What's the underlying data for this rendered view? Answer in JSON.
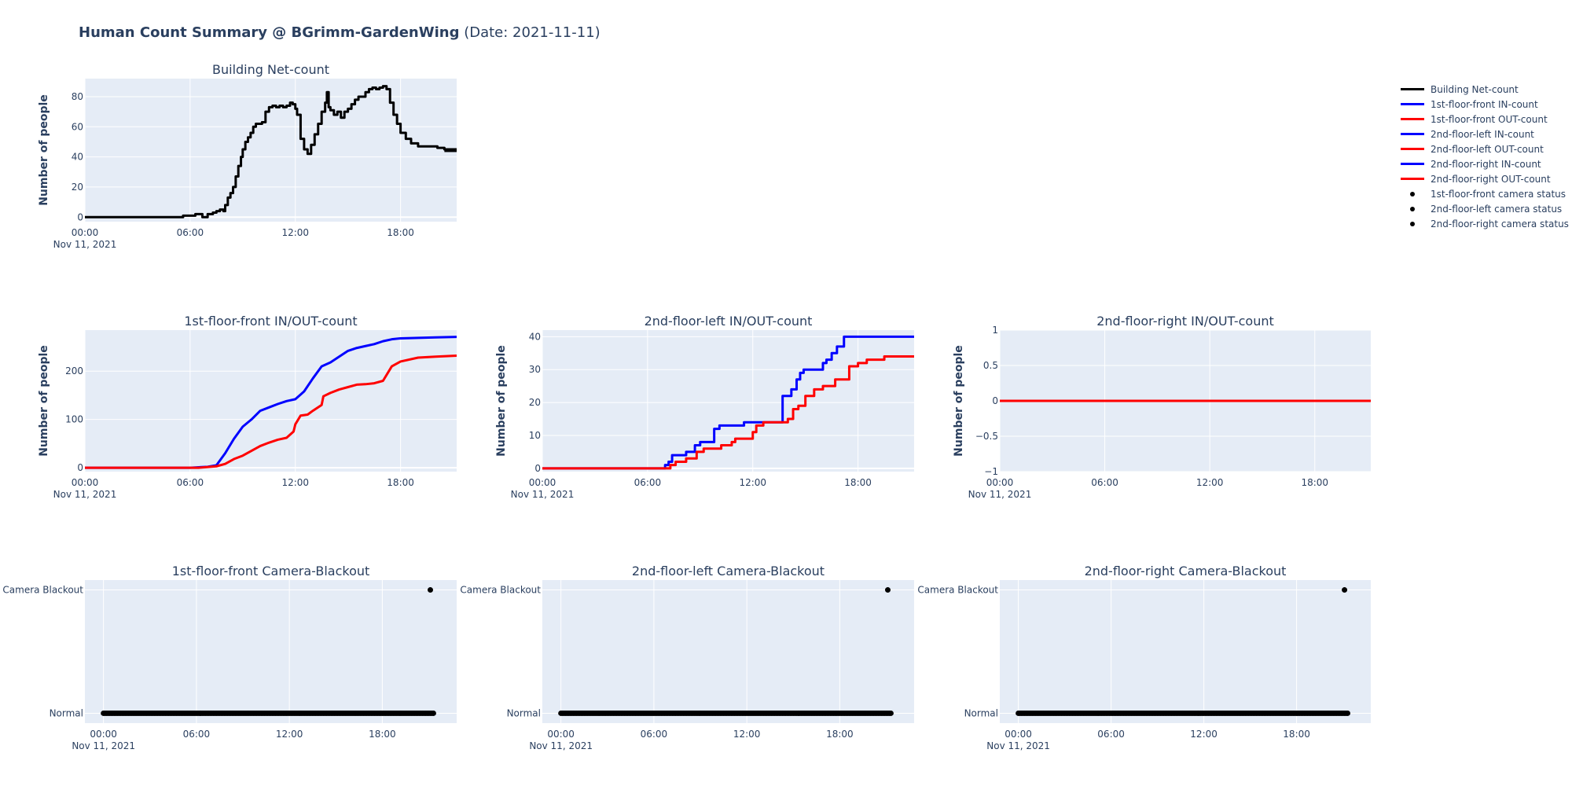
{
  "page": {
    "title_bold": "Human Count Summary @ BGrimm-GardenWing",
    "title_suffix": " (Date: 2021-11-11)"
  },
  "legend": [
    {
      "label": "Building Net-count",
      "kind": "line",
      "color": "#000000"
    },
    {
      "label": "1st-floor-front IN-count",
      "kind": "line",
      "color": "#0000ff"
    },
    {
      "label": "1st-floor-front OUT-count",
      "kind": "line",
      "color": "#ff0000"
    },
    {
      "label": "2nd-floor-left IN-count",
      "kind": "line",
      "color": "#0000ff"
    },
    {
      "label": "2nd-floor-left OUT-count",
      "kind": "line",
      "color": "#ff0000"
    },
    {
      "label": "2nd-floor-right IN-count",
      "kind": "line",
      "color": "#0000ff"
    },
    {
      "label": "2nd-floor-right OUT-count",
      "kind": "line",
      "color": "#ff0000"
    },
    {
      "label": "1st-floor-front camera status",
      "kind": "marker",
      "color": "#000000"
    },
    {
      "label": "2nd-floor-left camera status",
      "kind": "marker",
      "color": "#000000"
    },
    {
      "label": "2nd-floor-right camera status",
      "kind": "marker",
      "color": "#000000"
    }
  ],
  "chart_data": [
    {
      "id": "building-net",
      "type": "line",
      "title": "Building Net-count",
      "xlabel": "",
      "ylabel": "Number of people",
      "x_unit": "hours since 00:00 Nov 11, 2021",
      "xlim": [
        0,
        21.2
      ],
      "ylim": [
        -3,
        92
      ],
      "xticks": [
        0,
        6,
        12,
        18
      ],
      "xtick_labels": [
        "00:00",
        "06:00",
        "12:00",
        "18:00"
      ],
      "x_date_label": "Nov 11, 2021",
      "yticks": [
        0,
        20,
        40,
        60,
        80
      ],
      "ytick_labels": [
        "0",
        "20",
        "40",
        "60",
        "80"
      ],
      "grid": true,
      "series": [
        {
          "name": "Building Net-count",
          "color": "#000000",
          "shape": "hv",
          "x": [
            0,
            5.5,
            5.6,
            6.3,
            6.4,
            6.7,
            6.8,
            7.0,
            7.3,
            7.5,
            7.7,
            7.9,
            8.0,
            8.15,
            8.3,
            8.45,
            8.6,
            8.75,
            8.9,
            9.0,
            9.15,
            9.3,
            9.45,
            9.6,
            9.75,
            9.9,
            10.1,
            10.3,
            10.5,
            10.7,
            10.9,
            11.1,
            11.3,
            11.5,
            11.7,
            11.85,
            12.0,
            12.1,
            12.3,
            12.5,
            12.7,
            12.9,
            13.1,
            13.3,
            13.5,
            13.7,
            13.8,
            13.9,
            14.0,
            14.2,
            14.4,
            14.6,
            14.8,
            15.0,
            15.2,
            15.4,
            15.6,
            15.8,
            16.0,
            16.2,
            16.4,
            16.6,
            16.8,
            17.0,
            17.2,
            17.4,
            17.6,
            17.8,
            18.0,
            18.3,
            18.6,
            19.0,
            19.3,
            19.7,
            20.1,
            20.5,
            21.2
          ],
          "y": [
            0,
            0,
            1,
            2,
            2,
            0,
            0,
            2,
            3,
            4,
            5,
            4,
            8,
            13,
            16,
            20,
            27,
            34,
            40,
            45,
            50,
            53,
            56,
            60,
            62,
            62,
            63,
            70,
            73,
            74,
            73,
            74,
            73,
            74,
            76,
            75,
            72,
            68,
            52,
            45,
            42,
            48,
            55,
            62,
            70,
            76,
            83,
            73,
            71,
            68,
            70,
            66,
            70,
            72,
            75,
            78,
            80,
            80,
            83,
            85,
            86,
            85,
            86,
            87,
            85,
            76,
            68,
            62,
            56,
            52,
            49,
            47,
            47,
            47,
            46,
            45,
            44
          ]
        },
        {
          "name": "Building Net-count (tail)",
          "color": "#000000",
          "shape": "hv",
          "x": [
            20.5,
            21.2
          ],
          "y": [
            44,
            44
          ]
        }
      ]
    },
    {
      "id": "ff-front",
      "type": "line",
      "title": "1st-floor-front IN/OUT-count",
      "xlabel": "",
      "ylabel": "Number of people",
      "xlim": [
        0,
        21.2
      ],
      "ylim": [
        -8,
        285
      ],
      "xticks": [
        0,
        6,
        12,
        18
      ],
      "xtick_labels": [
        "00:00",
        "06:00",
        "12:00",
        "18:00"
      ],
      "x_date_label": "Nov 11, 2021",
      "yticks": [
        0,
        100,
        200
      ],
      "ytick_labels": [
        "0",
        "100",
        "200"
      ],
      "grid": true,
      "series": [
        {
          "name": "1st-floor-front IN-count",
          "color": "#0000ff",
          "x": [
            0,
            6.0,
            7.0,
            7.5,
            8.0,
            8.5,
            9.0,
            9.5,
            10.0,
            10.5,
            11.0,
            11.5,
            12.0,
            12.5,
            13.0,
            13.5,
            14.0,
            14.5,
            15.0,
            15.5,
            16.0,
            16.5,
            17.0,
            17.5,
            18.0,
            19.0,
            20.0,
            21.2
          ],
          "y": [
            0,
            0,
            2,
            5,
            30,
            60,
            85,
            100,
            118,
            125,
            132,
            138,
            142,
            158,
            185,
            210,
            218,
            230,
            242,
            248,
            252,
            256,
            262,
            266,
            268,
            269,
            270,
            271
          ]
        },
        {
          "name": "1st-floor-front OUT-count",
          "color": "#ff0000",
          "x": [
            0,
            6.5,
            7.5,
            8.0,
            8.5,
            9.0,
            9.5,
            10.0,
            10.5,
            11.0,
            11.5,
            11.9,
            12.0,
            12.3,
            12.7,
            13.0,
            13.5,
            13.6,
            14.0,
            14.5,
            15.0,
            15.5,
            16.0,
            16.5,
            17.0,
            17.5,
            18.0,
            19.0,
            20.0,
            21.2
          ],
          "y": [
            0,
            0,
            3,
            8,
            18,
            25,
            35,
            45,
            52,
            58,
            62,
            75,
            90,
            108,
            110,
            118,
            130,
            148,
            155,
            162,
            167,
            172,
            173,
            175,
            180,
            210,
            220,
            228,
            230,
            232
          ]
        }
      ]
    },
    {
      "id": "sf-left",
      "type": "line",
      "title": "2nd-floor-left IN/OUT-count",
      "xlabel": "",
      "ylabel": "Number of people",
      "xlim": [
        0,
        21.2
      ],
      "ylim": [
        -1,
        42
      ],
      "xticks": [
        0,
        6,
        12,
        18
      ],
      "xtick_labels": [
        "00:00",
        "06:00",
        "12:00",
        "18:00"
      ],
      "x_date_label": "Nov 11, 2021",
      "yticks": [
        0,
        10,
        20,
        30,
        40
      ],
      "ytick_labels": [
        "0",
        "10",
        "20",
        "30",
        "40"
      ],
      "grid": true,
      "series": [
        {
          "name": "2nd-floor-left IN-count",
          "color": "#0000ff",
          "shape": "hv",
          "x": [
            0,
            6.9,
            7.0,
            7.2,
            7.4,
            8.2,
            8.7,
            9.0,
            9.5,
            9.8,
            10.1,
            11.0,
            11.5,
            12.0,
            13.6,
            13.7,
            14.2,
            14.5,
            14.7,
            14.9,
            15.2,
            16.0,
            16.2,
            16.5,
            16.8,
            17.2,
            17.4,
            21.2
          ],
          "y": [
            0,
            0,
            1,
            2,
            4,
            5,
            7,
            8,
            8,
            12,
            13,
            13,
            14,
            14,
            14,
            22,
            24,
            27,
            29,
            30,
            30,
            32,
            33,
            35,
            37,
            40,
            40,
            40
          ]
        },
        {
          "name": "2nd-floor-left OUT-count",
          "color": "#ff0000",
          "shape": "hv",
          "x": [
            0,
            7.0,
            7.3,
            7.6,
            8.2,
            8.8,
            9.2,
            10.2,
            10.8,
            11.0,
            11.2,
            11.5,
            12.0,
            12.2,
            12.4,
            12.6,
            13.5,
            14.0,
            14.3,
            14.6,
            15.0,
            15.5,
            16.0,
            16.7,
            17.0,
            17.5,
            18.0,
            18.5,
            19.0,
            19.5,
            21.2
          ],
          "y": [
            0,
            0,
            1,
            2,
            3,
            5,
            6,
            7,
            8,
            9,
            9,
            9,
            11,
            13,
            13,
            14,
            14,
            15,
            18,
            19,
            22,
            24,
            25,
            27,
            27,
            31,
            32,
            33,
            33,
            34,
            34
          ]
        }
      ]
    },
    {
      "id": "sf-right",
      "type": "line",
      "title": "2nd-floor-right IN/OUT-count",
      "xlabel": "",
      "ylabel": "Number of people",
      "xlim": [
        0,
        21.2
      ],
      "ylim": [
        -1,
        1
      ],
      "xticks": [
        0,
        6,
        12,
        18
      ],
      "xtick_labels": [
        "00:00",
        "06:00",
        "12:00",
        "18:00"
      ],
      "x_date_label": "Nov 11, 2021",
      "yticks": [
        -1,
        -0.5,
        0,
        0.5,
        1
      ],
      "ytick_labels": [
        "−1",
        "−0.5",
        "0",
        "0.5",
        "1"
      ],
      "grid": true,
      "series": [
        {
          "name": "2nd-floor-right IN-count",
          "color": "#0000ff",
          "x": [
            0,
            21.2
          ],
          "y": [
            0,
            0
          ]
        },
        {
          "name": "2nd-floor-right OUT-count",
          "color": "#ff0000",
          "x": [
            0,
            21.2
          ],
          "y": [
            0,
            0
          ]
        }
      ]
    },
    {
      "id": "ff-front-cam",
      "type": "scatter",
      "title": "1st-floor-front Camera-Blackout",
      "xlabel": "",
      "ylabel": "",
      "xlim": [
        -1.2,
        22.8
      ],
      "ylim": [
        -0.08,
        1.08
      ],
      "xticks": [
        0,
        6,
        12,
        18
      ],
      "xtick_labels": [
        "00:00",
        "06:00",
        "12:00",
        "18:00"
      ],
      "x_date_label": "Nov 11, 2021",
      "yticks": [
        0,
        1
      ],
      "ytick_labels": [
        "Normal",
        "Camera Blackout"
      ],
      "grid": true,
      "series": [
        {
          "name": "1st-floor-front camera status",
          "color": "#000000",
          "normal_range": [
            0,
            21.3
          ],
          "blackout_points": [
            21.1
          ]
        }
      ]
    },
    {
      "id": "sf-left-cam",
      "type": "scatter",
      "title": "2nd-floor-left Camera-Blackout",
      "xlabel": "",
      "ylabel": "",
      "xlim": [
        -1.2,
        22.8
      ],
      "ylim": [
        -0.08,
        1.08
      ],
      "xticks": [
        0,
        6,
        12,
        18
      ],
      "xtick_labels": [
        "00:00",
        "06:00",
        "12:00",
        "18:00"
      ],
      "x_date_label": "Nov 11, 2021",
      "yticks": [
        0,
        1
      ],
      "ytick_labels": [
        "Normal",
        "Camera Blackout"
      ],
      "grid": true,
      "series": [
        {
          "name": "2nd-floor-left camera status",
          "color": "#000000",
          "normal_range": [
            0,
            21.3
          ],
          "blackout_points": [
            21.1
          ]
        }
      ]
    },
    {
      "id": "sf-right-cam",
      "type": "scatter",
      "title": "2nd-floor-right Camera-Blackout",
      "xlabel": "",
      "ylabel": "",
      "xlim": [
        -1.2,
        22.8
      ],
      "ylim": [
        -0.08,
        1.08
      ],
      "xticks": [
        0,
        6,
        12,
        18
      ],
      "xtick_labels": [
        "00:00",
        "06:00",
        "12:00",
        "18:00"
      ],
      "x_date_label": "Nov 11, 2021",
      "yticks": [
        0,
        1
      ],
      "ytick_labels": [
        "Normal",
        "Camera Blackout"
      ],
      "grid": true,
      "series": [
        {
          "name": "2nd-floor-right camera status",
          "color": "#000000",
          "normal_range": [
            0,
            21.3
          ],
          "blackout_points": [
            21.1
          ]
        }
      ]
    }
  ]
}
